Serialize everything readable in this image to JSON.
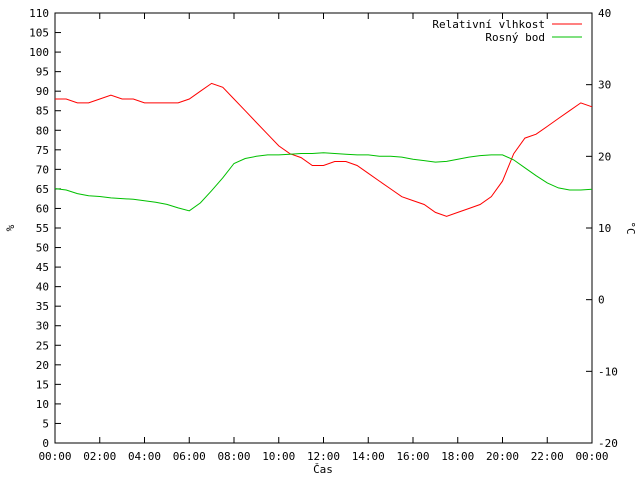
{
  "chart_data": {
    "type": "line",
    "xlabel": "Čas",
    "ylabel_left": "%",
    "ylabel_right": "°C",
    "x_ticks": [
      "00:00",
      "02:00",
      "04:00",
      "06:00",
      "08:00",
      "10:00",
      "12:00",
      "14:00",
      "16:00",
      "18:00",
      "20:00",
      "22:00",
      "00:00"
    ],
    "x_range_hours": [
      0,
      24
    ],
    "ylim_left": [
      0,
      110
    ],
    "yticks_left": [
      0,
      5,
      10,
      15,
      20,
      25,
      30,
      35,
      40,
      45,
      50,
      55,
      60,
      65,
      70,
      75,
      80,
      85,
      90,
      95,
      100,
      105,
      110
    ],
    "ylim_right": [
      -20,
      40
    ],
    "yticks_right": [
      -20,
      -10,
      0,
      10,
      20,
      30,
      40
    ],
    "grid": false,
    "legend_position": "top-right",
    "series": [
      {
        "name": "Relativní vlhkost",
        "axis": "left",
        "color": "#ff0000",
        "x": [
          0,
          0.5,
          1,
          1.5,
          2,
          2.5,
          3,
          3.5,
          4,
          4.5,
          5,
          5.5,
          6,
          6.5,
          7,
          7.5,
          8,
          8.5,
          9,
          9.5,
          10,
          10.5,
          11,
          11.5,
          12,
          12.5,
          13,
          13.5,
          14,
          14.5,
          15,
          15.5,
          16,
          16.5,
          17,
          17.5,
          18,
          18.5,
          19,
          19.5,
          20,
          20.5,
          21,
          21.5,
          22,
          22.5,
          23,
          23.5,
          24
        ],
        "y": [
          88,
          88,
          87,
          87,
          88,
          89,
          88,
          88,
          87,
          87,
          87,
          87,
          88,
          90,
          92,
          91,
          88,
          85,
          82,
          79,
          76,
          74,
          73,
          71,
          71,
          72,
          72,
          71,
          69,
          67,
          65,
          63,
          62,
          61,
          59,
          58,
          59,
          60,
          61,
          63,
          67,
          74,
          78,
          79,
          81,
          83,
          85,
          87,
          86
        ]
      },
      {
        "name": "Rosný bod",
        "axis": "right",
        "color": "#00c000",
        "x": [
          0,
          0.5,
          1,
          1.5,
          2,
          2.5,
          3,
          3.5,
          4,
          4.5,
          5,
          5.5,
          6,
          6.5,
          7,
          7.5,
          8,
          8.5,
          9,
          9.5,
          10,
          10.5,
          11,
          11.5,
          12,
          12.5,
          13,
          13.5,
          14,
          14.5,
          15,
          15.5,
          16,
          16.5,
          17,
          17.5,
          18,
          18.5,
          19,
          19.5,
          20,
          20.5,
          21,
          21.5,
          22,
          22.5,
          23,
          23.5,
          24
        ],
        "y": [
          15.5,
          15.3,
          14.8,
          14.5,
          14.4,
          14.2,
          14.1,
          14.0,
          13.8,
          13.6,
          13.3,
          12.8,
          12.4,
          13.5,
          15.2,
          17.0,
          19.0,
          19.7,
          20.0,
          20.2,
          20.2,
          20.3,
          20.4,
          20.4,
          20.5,
          20.4,
          20.3,
          20.2,
          20.2,
          20.0,
          20.0,
          19.9,
          19.6,
          19.4,
          19.2,
          19.3,
          19.6,
          19.9,
          20.1,
          20.2,
          20.2,
          19.5,
          18.4,
          17.3,
          16.3,
          15.6,
          15.3,
          15.3,
          15.4
        ]
      }
    ]
  }
}
